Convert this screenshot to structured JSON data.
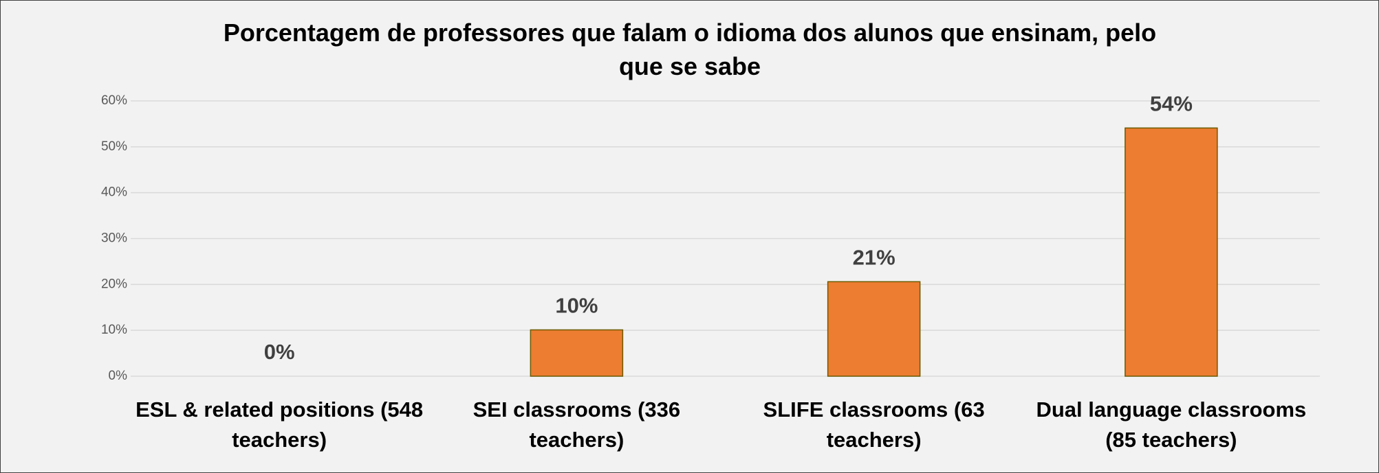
{
  "chart_data": {
    "type": "bar",
    "title": "Porcentagem de professores que falam o idioma dos alunos que ensinam, pelo que se sabe",
    "categories": [
      "ESL  & related positions (548 teachers)",
      "SEI classrooms (336 teachers)",
      "SLIFE classrooms (63 teachers)",
      "Dual language classrooms (85 teachers)"
    ],
    "values": [
      0,
      10.1,
      20.6,
      54.1
    ],
    "value_labels": [
      "0%",
      "10%",
      "21%",
      "54%"
    ],
    "color": "#ed7d31",
    "ylim": [
      0,
      60
    ],
    "yticks": [
      {
        "value": 0,
        "label": "0%"
      },
      {
        "value": 10,
        "label": "10%"
      },
      {
        "value": 20,
        "label": "20%"
      },
      {
        "value": 30,
        "label": "30%"
      },
      {
        "value": 40,
        "label": "40%"
      },
      {
        "value": 50,
        "label": "50%"
      },
      {
        "value": 60,
        "label": "60%"
      }
    ],
    "grid": true
  }
}
